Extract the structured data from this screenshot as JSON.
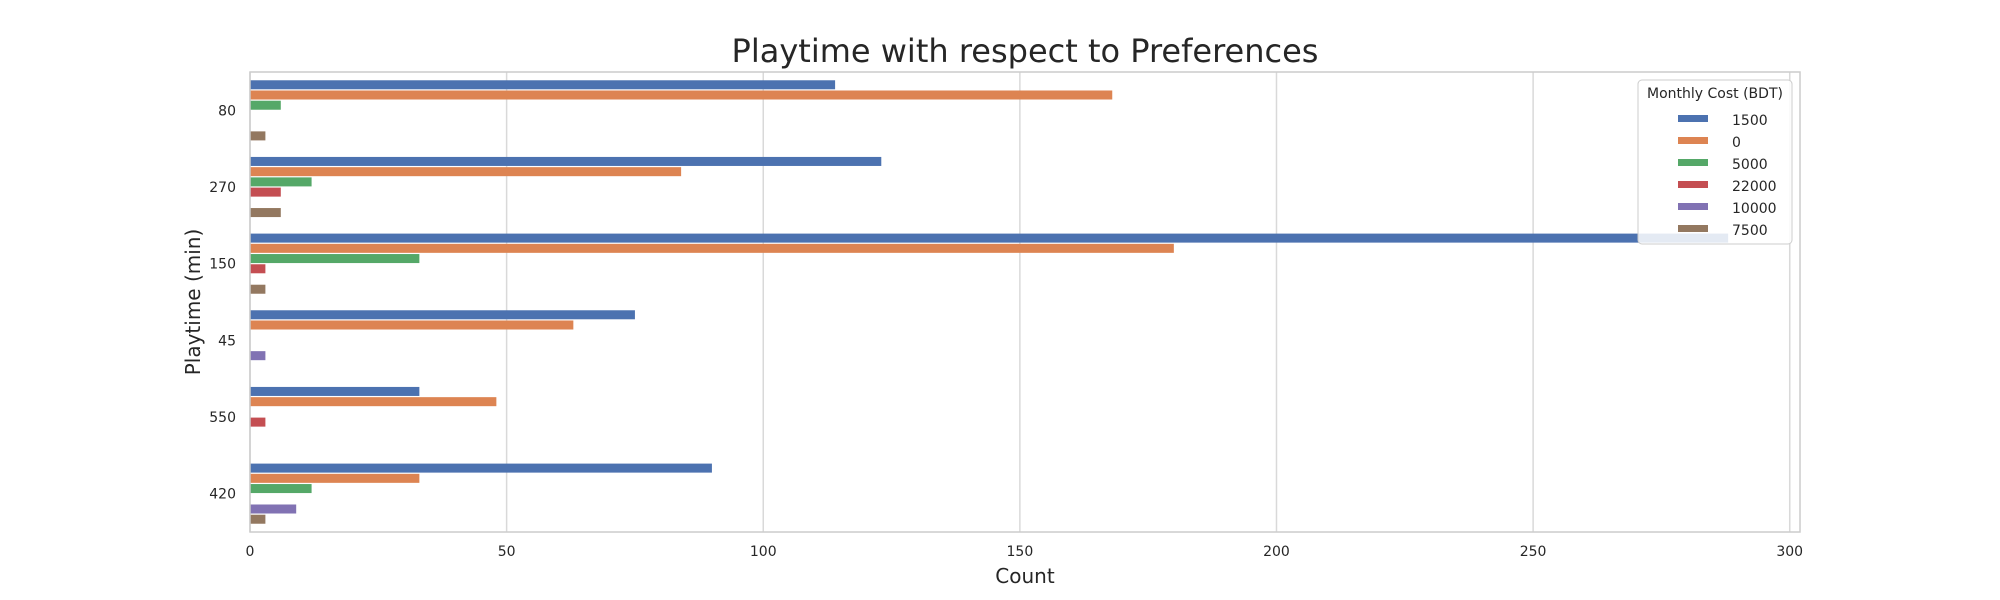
{
  "chart_data": {
    "type": "bar",
    "orientation": "horizontal",
    "title": "Playtime with respect to Preferences",
    "xlabel": "Count",
    "ylabel": "Playtime (min)",
    "xlim": [
      0,
      302
    ],
    "xticks": [
      0,
      50,
      100,
      150,
      200,
      250,
      300
    ],
    "grid": "vertical",
    "categories": [
      "80",
      "270",
      "150",
      "45",
      "550",
      "420"
    ],
    "legend": {
      "title": "Monthly Cost (BDT)",
      "placement": "top-right"
    },
    "series": [
      {
        "name": "1500",
        "color": "#4c72b0",
        "values": [
          114,
          123,
          288,
          75,
          33,
          90
        ]
      },
      {
        "name": "0",
        "color": "#dd8452",
        "values": [
          168,
          84,
          180,
          63,
          48,
          33
        ]
      },
      {
        "name": "5000",
        "color": "#55a868",
        "values": [
          6,
          12,
          33,
          0,
          0,
          12
        ]
      },
      {
        "name": "22000",
        "color": "#c44e52",
        "values": [
          0,
          6,
          3,
          0,
          3,
          0
        ]
      },
      {
        "name": "10000",
        "color": "#8172b3",
        "values": [
          0,
          0,
          0,
          3,
          0,
          9
        ]
      },
      {
        "name": "7500",
        "color": "#937860",
        "values": [
          3,
          6,
          3,
          0,
          0,
          3
        ]
      }
    ]
  }
}
